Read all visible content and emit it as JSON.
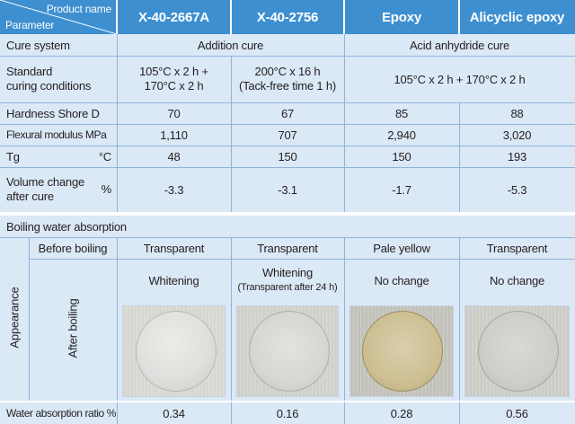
{
  "header": {
    "product_name": "Product name",
    "parameter": "Parameter",
    "products": [
      "X-40-2667A",
      "X-40-2756",
      "Epoxy",
      "Alicyclic epoxy"
    ]
  },
  "rows": {
    "cure_system": {
      "label": "Cure system",
      "addition": "Addition cure",
      "acid": "Acid anhydride cure"
    },
    "curing_conditions": {
      "label_line1": "Standard",
      "label_line2": "curing conditions",
      "p1_line1": "105°C x 2 h +",
      "p1_line2": "170°C x 2 h",
      "p2_line1": "200°C x 16 h",
      "p2_line2": "(Tack-free time 1 h)",
      "p34": "105°C x 2 h + 170°C x 2 h"
    },
    "hardness": {
      "label": "Hardness  Shore D",
      "values": [
        "70",
        "67",
        "85",
        "88"
      ]
    },
    "flexural": {
      "label": "Flexural modulus MPa",
      "values": [
        "1,110",
        "707",
        "2,940",
        "3,020"
      ]
    },
    "tg": {
      "label": "Tg",
      "unit": "°C",
      "values": [
        "48",
        "150",
        "150",
        "193"
      ]
    },
    "volume_change": {
      "label_line1": "Volume change",
      "label_line2": "after cure",
      "unit": "%",
      "values": [
        "-3.3",
        "-3.1",
        "-1.7",
        "-5.3"
      ]
    }
  },
  "boiling": {
    "section_title": "Boiling water absorption",
    "appearance_label": "Appearance",
    "before_label": "Before boiling",
    "after_label": "After boiling",
    "before_values": [
      "Transparent",
      "Transparent",
      "Pale yellow",
      "Transparent"
    ],
    "after_values": [
      "Whitening",
      "Whitening",
      "No change",
      "No change"
    ],
    "after_note_p2": "(Transparent after 24 h)",
    "ratio_label": "Water absorption ratio  %",
    "ratio_values": [
      "0.34",
      "0.16",
      "0.28",
      "0.56"
    ]
  },
  "colors": {
    "header_blue": "#3d8fd0",
    "light_blue": "#dbe8f6",
    "grid_line": "#8fb4db",
    "sample_epoxy_tint": "#cdbf92"
  }
}
